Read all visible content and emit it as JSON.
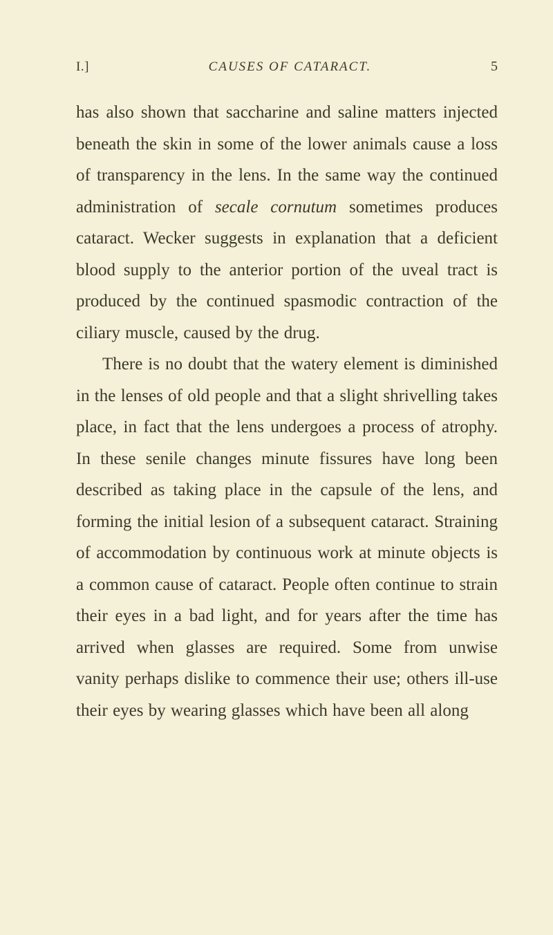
{
  "page": {
    "section_marker": "I.]",
    "running_title": "CAUSES OF CATARACT.",
    "page_number": "5"
  },
  "paragraphs": {
    "p1_part1": "has also shown that saccharine and saline matters injected beneath the skin in some of the lower animals cause a loss of transparency in the lens. In the same way the continued administration of ",
    "p1_italic": "secale cornutum",
    "p1_part2": " sometimes produces cataract. Wecker suggests in ex­planation that a deficient blood supply to the anterior portion of the uveal tract is produced by the continued spasmodic contraction of the ciliary muscle, caused by the drug.",
    "p2": "There is no doubt that the watery element is diminished in the lenses of old people and that a slight shrivelling takes place, in fact that the lens undergoes a process of atrophy. In these senile changes minute fissures have long been described as taking place in the capsule of the lens, and forming the initial lesion of a subsequent cataract. Straining of accommodation by continuous work at minute objects is a common cause of cataract. People often continue to strain their eyes in a bad light, and for years after the time has arrived when glasses are required. Some from unwise vanity perhaps dislike to com­mence their use; others ill-use their eyes by wearing glasses which have been all along"
  }
}
